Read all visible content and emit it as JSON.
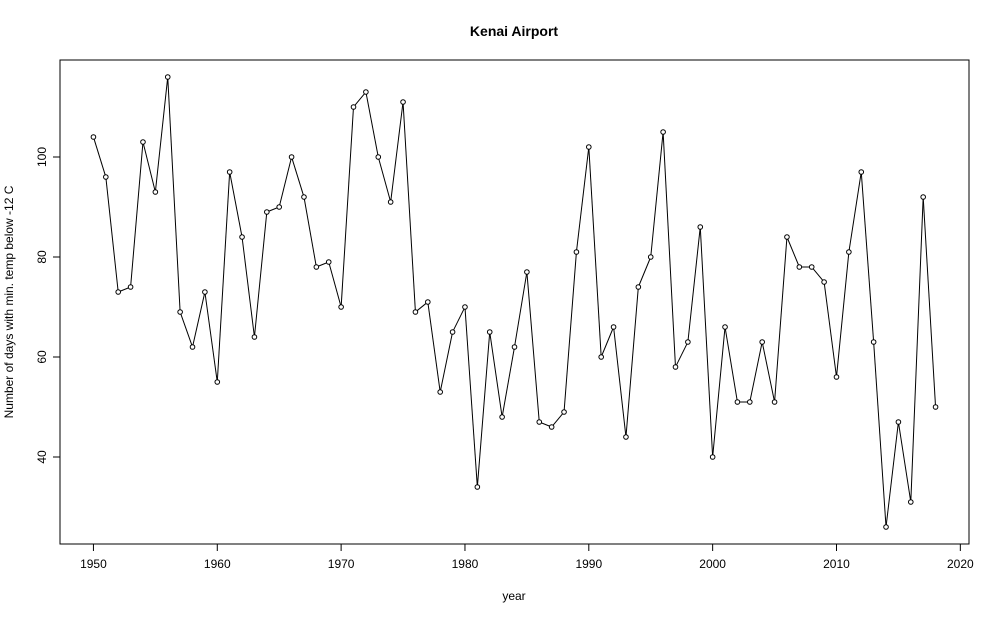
{
  "chart_data": {
    "type": "line",
    "title": "Kenai Airport",
    "xlabel": "year",
    "ylabel": "Number of days with min. temp below -12 C",
    "xlim": [
      1947.3,
      2020.7
    ],
    "ylim": [
      22.6,
      119.4
    ],
    "xticks": [
      1950,
      1960,
      1970,
      1980,
      1990,
      2000,
      2010,
      2020
    ],
    "yticks": [
      40,
      60,
      80,
      100
    ],
    "grid": false,
    "legend": "none",
    "line_color": "#000000",
    "x": [
      1950,
      1951,
      1952,
      1953,
      1954,
      1955,
      1956,
      1957,
      1958,
      1959,
      1960,
      1961,
      1962,
      1963,
      1964,
      1965,
      1966,
      1967,
      1968,
      1969,
      1970,
      1971,
      1972,
      1973,
      1974,
      1975,
      1976,
      1977,
      1978,
      1979,
      1980,
      1981,
      1982,
      1983,
      1984,
      1985,
      1986,
      1987,
      1988,
      1989,
      1990,
      1991,
      1992,
      1993,
      1994,
      1995,
      1996,
      1997,
      1998,
      1999,
      2000,
      2001,
      2002,
      2003,
      2004,
      2005,
      2006,
      2007,
      2008,
      2009,
      2010,
      2011,
      2012,
      2013,
      2014,
      2015,
      2016,
      2017,
      2018
    ],
    "series": [
      {
        "values": [
          104,
          96,
          73,
          74,
          103,
          93,
          116,
          69,
          62,
          73,
          55,
          97,
          84,
          64,
          89,
          90,
          100,
          92,
          78,
          79,
          70,
          110,
          113,
          100,
          91,
          111,
          69,
          71,
          53,
          65,
          70,
          34,
          65,
          48,
          62,
          77,
          47,
          46,
          49,
          81,
          102,
          60,
          66,
          44,
          74,
          80,
          105,
          58,
          63,
          86,
          40,
          66,
          51,
          51,
          63,
          51,
          84,
          78,
          78,
          75,
          56,
          81,
          97,
          63,
          26,
          47,
          31,
          92,
          50
        ]
      }
    ]
  }
}
